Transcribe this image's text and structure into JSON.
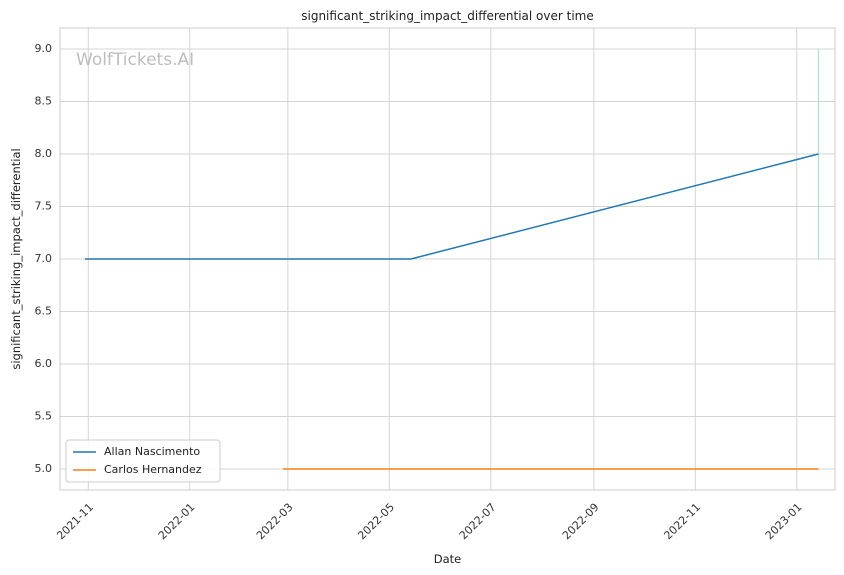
{
  "chart_data": {
    "type": "line",
    "title": "significant_striking_impact_differential over time",
    "xlabel": "Date",
    "ylabel": "significant_striking_impact_differential",
    "watermark": "WolfTickets.AI",
    "x_type": "date",
    "xlim": [
      "2021-10-15",
      "2023-01-24"
    ],
    "ylim": [
      4.8,
      9.2
    ],
    "x_ticks": [
      "2021-11-01",
      "2022-01-01",
      "2022-03-01",
      "2022-05-01",
      "2022-07-01",
      "2022-09-01",
      "2022-11-01",
      "2023-01-01"
    ],
    "x_tick_labels": [
      "2021-11",
      "2022-01",
      "2022-03",
      "2022-05",
      "2022-07",
      "2022-09",
      "2022-11",
      "2023-01"
    ],
    "y_ticks": [
      5.0,
      5.5,
      6.0,
      6.5,
      7.0,
      7.5,
      8.0,
      8.5,
      9.0
    ],
    "y_tick_labels": [
      "5.0",
      "5.5",
      "6.0",
      "6.5",
      "7.0",
      "7.5",
      "8.0",
      "8.5",
      "9.0"
    ],
    "grid": true,
    "legend_position": "lower-left",
    "series": [
      {
        "name": "Allan Nascimento",
        "color": "#1f77b4",
        "points": [
          {
            "x": "2021-10-30",
            "y": 7.0
          },
          {
            "x": "2022-05-14",
            "y": 7.0
          },
          {
            "x": "2023-01-14",
            "y": 8.0
          }
        ]
      },
      {
        "name": "Carlos Hernandez",
        "color": "#ff7f0e",
        "points": [
          {
            "x": "2022-02-26",
            "y": 5.0
          },
          {
            "x": "2023-01-14",
            "y": 5.0
          }
        ]
      }
    ],
    "vertical_markers": [
      {
        "x": "2023-01-14",
        "y_range": [
          7.0,
          9.0
        ],
        "color": "#a8d8c8"
      }
    ]
  }
}
